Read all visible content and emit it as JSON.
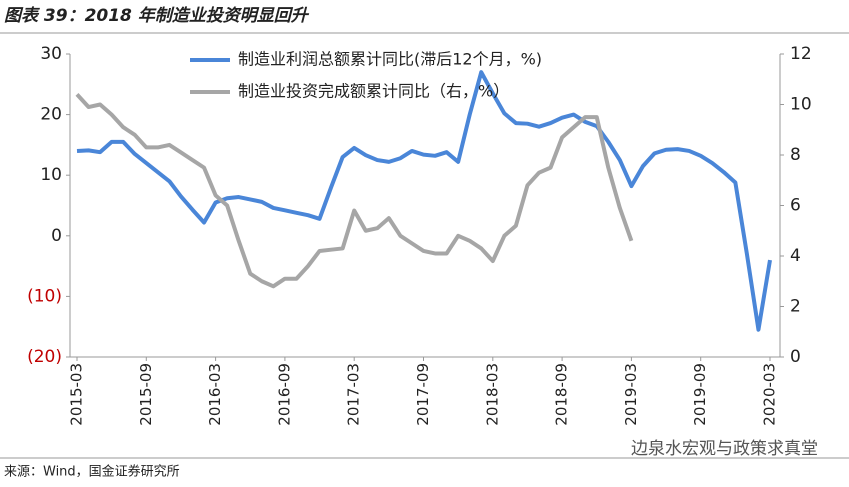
{
  "chart_data": {
    "type": "line",
    "title": "图表 39：2018 年制造业投资明显回升",
    "source": "来源：Wind，国金证券研究所",
    "watermark": "边泉水宏观与政策求真堂",
    "categories": [
      "2015-03",
      null,
      null,
      null,
      null,
      null,
      "2015-09",
      null,
      null,
      null,
      null,
      null,
      "2016-03",
      null,
      null,
      null,
      null,
      null,
      "2016-09",
      null,
      null,
      null,
      null,
      null,
      "2017-03",
      null,
      null,
      null,
      null,
      null,
      "2017-09",
      null,
      null,
      null,
      null,
      null,
      "2018-03",
      null,
      null,
      null,
      null,
      null,
      "2018-09",
      null,
      null,
      null,
      null,
      null,
      "2019-03",
      null,
      null,
      null,
      null,
      null,
      "2019-09",
      null,
      null,
      null,
      null,
      null,
      "2020-03"
    ],
    "series": [
      {
        "name": "制造业利润总额累计同比(滞后12个月，%)",
        "color": "#4a86d8",
        "axis": "y",
        "values": [
          14,
          14.1,
          13.8,
          15.5,
          15.5,
          13.5,
          12,
          10.5,
          9,
          6.5,
          4.3,
          2.2,
          5.5,
          6.2,
          6.4,
          6,
          5.6,
          4.6,
          4.2,
          3.8,
          3.4,
          2.8,
          8,
          13,
          14.5,
          13.3,
          12.5,
          12.2,
          12.8,
          14,
          13.4,
          13.2,
          13.8,
          12.2,
          20,
          27,
          23.5,
          20.2,
          18.6,
          18.5,
          18,
          18.6,
          19.5,
          20,
          18.8,
          18.1,
          15.5,
          12.5,
          8.2,
          11.5,
          13.6,
          14.2,
          14.3,
          14,
          13.2,
          12,
          10.5,
          8.8,
          -3,
          -15.5,
          -4
        ]
      },
      {
        "name": "制造业投资完成额累计同比（右，%）",
        "color": "#a6a6a6",
        "axis": "y2",
        "values": [
          10.4,
          9.9,
          10,
          9.6,
          9.1,
          8.8,
          8.3,
          8.3,
          8.4,
          8.1,
          7.8,
          7.5,
          6.4,
          6.0,
          4.6,
          3.3,
          3.0,
          2.8,
          3.1,
          3.1,
          3.6,
          4.2,
          4.25,
          4.3,
          5.8,
          5.0,
          5.1,
          5.5,
          4.8,
          4.5,
          4.2,
          4.1,
          4.1,
          4.8,
          4.6,
          4.3,
          3.8,
          4.8,
          5.2,
          6.8,
          7.3,
          7.5,
          8.7,
          9.1,
          9.5,
          9.5,
          7.5,
          5.9,
          4.6,
          null,
          null,
          null,
          null,
          null,
          null,
          null,
          null,
          null,
          null,
          null,
          null
        ]
      }
    ],
    "ylim": [
      -20,
      30
    ],
    "yticks": [
      {
        "value": -20,
        "label": "(20)"
      },
      {
        "value": -10,
        "label": "(10)"
      },
      0,
      10,
      20,
      30
    ],
    "y2lim": [
      0,
      12
    ],
    "y2ticks": [
      0,
      2,
      4,
      6,
      8,
      10,
      12
    ],
    "negative_tick_color": "#c00000",
    "legend": "top"
  }
}
